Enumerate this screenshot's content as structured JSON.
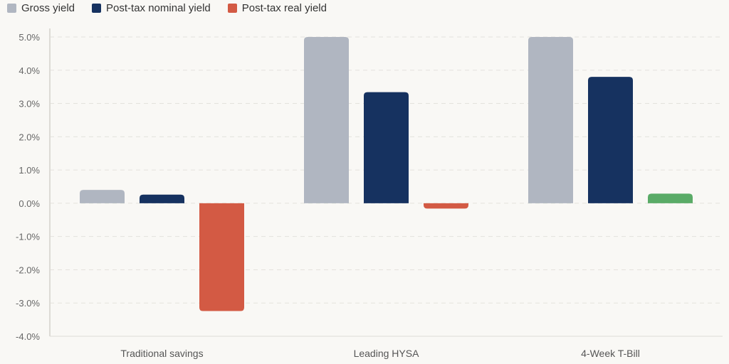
{
  "chart_data": {
    "type": "bar",
    "categories": [
      "Traditional savings",
      "Leading HYSA",
      "4-Week T-Bill"
    ],
    "series": [
      {
        "name": "Gross yield",
        "color": "#b0b6c1",
        "values": [
          0.4,
          5.0,
          5.0
        ]
      },
      {
        "name": "Post-tax nominal yield",
        "color": "#163260",
        "values": [
          0.26,
          3.34,
          3.8
        ]
      },
      {
        "name": "Post-tax real yield",
        "color": "#d35a44",
        "values": [
          -3.24,
          -0.16,
          0.29
        ]
      }
    ],
    "positive_real_color": "#5aab67",
    "ylim": [
      -4.0,
      5.0
    ],
    "yticks": [
      "5.0%",
      "4.0%",
      "3.0%",
      "2.0%",
      "1.0%",
      "0.0%",
      "-1.0%",
      "-2.0%",
      "-3.0%",
      "-4.0%"
    ],
    "ytick_values": [
      5,
      4,
      3,
      2,
      1,
      0,
      -1,
      -2,
      -3,
      -4
    ],
    "grid": true,
    "legend": "top-left",
    "title": "",
    "xlabel": "",
    "ylabel": ""
  }
}
